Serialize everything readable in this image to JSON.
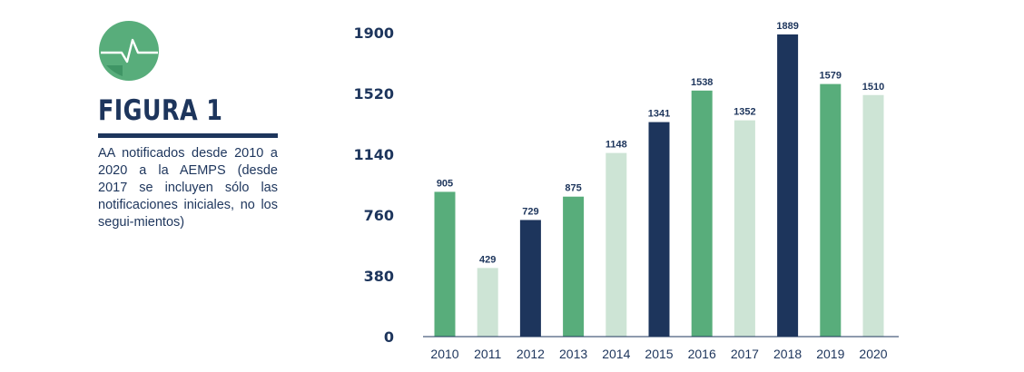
{
  "figure": {
    "title": "FIGURA 1",
    "caption": "AA notificados desde 2010 a 2020 a la AEMPS (desde 2017 se incluyen sólo las notificaciones iniciales, no los segui-mientos)",
    "icon": "heartbeat-icon"
  },
  "colors": {
    "dark_green": "#58ad7b",
    "light_green": "#cde4d5",
    "navy": "#1d355c",
    "text": "#1d355c"
  },
  "chart_data": {
    "type": "bar",
    "categories": [
      "2010",
      "2011",
      "2012",
      "2013",
      "2014",
      "2015",
      "2016",
      "2017",
      "2018",
      "2019",
      "2020"
    ],
    "values": [
      905,
      429,
      729,
      875,
      1148,
      1341,
      1538,
      1352,
      1889,
      1579,
      1510
    ],
    "bar_colors": [
      "#58ad7b",
      "#cde4d5",
      "#1d355c",
      "#58ad7b",
      "#cde4d5",
      "#1d355c",
      "#58ad7b",
      "#cde4d5",
      "#1d355c",
      "#58ad7b",
      "#cde4d5"
    ],
    "yticks": [
      0,
      380,
      760,
      1140,
      1520,
      1900
    ],
    "ylim": [
      0,
      1900
    ],
    "title": "",
    "xlabel": "",
    "ylabel": "",
    "grid": false,
    "data_labels": true
  }
}
